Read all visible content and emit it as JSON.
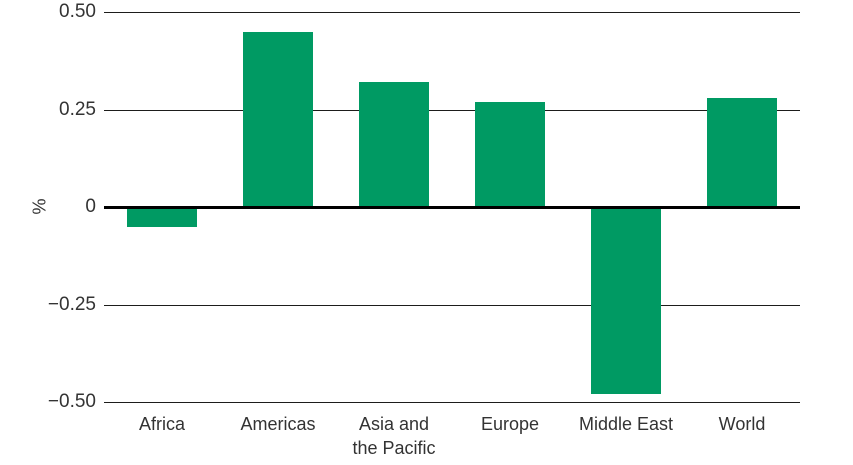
{
  "chart_data": {
    "type": "bar",
    "title": "",
    "ylabel": "%",
    "xlabel": "",
    "ylim": [
      -0.5,
      0.5
    ],
    "grid": true,
    "legend": false,
    "bar_color": "#009A63",
    "grid_color": "#1d1d1b",
    "zero_line_color": "#000000",
    "text_color": "#333333",
    "categories": [
      "Africa",
      "Americas",
      "Asia and the Pacific",
      "Europe",
      "Middle East",
      "World"
    ],
    "category_label_lines": [
      [
        "Africa"
      ],
      [
        "Americas"
      ],
      [
        "Asia and",
        "the Pacific"
      ],
      [
        "Europe"
      ],
      [
        "Middle East"
      ],
      [
        "World"
      ]
    ],
    "values": [
      -0.05,
      0.45,
      0.32,
      0.27,
      -0.48,
      0.28
    ],
    "yticks": [
      {
        "value": 0.5,
        "label": "0.50"
      },
      {
        "value": 0.25,
        "label": "0.25"
      },
      {
        "value": 0,
        "label": "0"
      },
      {
        "value": -0.25,
        "label": "−0.25"
      },
      {
        "value": -0.5,
        "label": "−0.50"
      }
    ]
  }
}
